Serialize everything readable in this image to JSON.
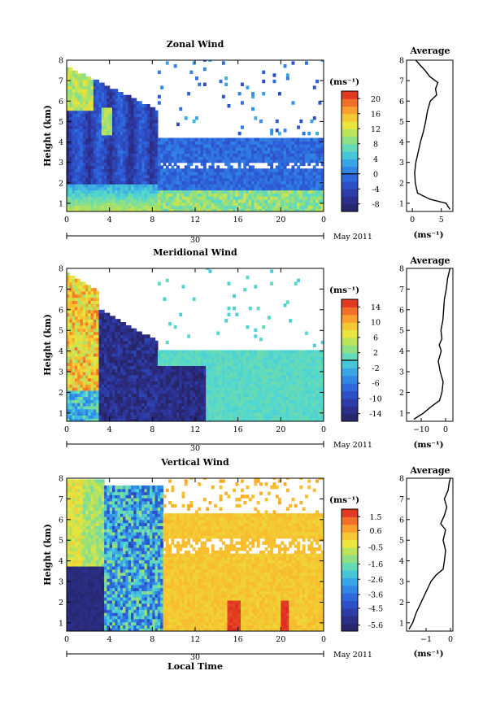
{
  "chart_data": [
    {
      "type": "heatmap",
      "title": "Zonal Wind",
      "ylabel": "Height (km)",
      "xlabel": "",
      "xlim": [
        0,
        24
      ],
      "ylim": [
        0.6,
        8
      ],
      "xticks": [
        "0",
        "4",
        "8",
        "12",
        "16",
        "20",
        "0"
      ],
      "yticks": [
        "1",
        "2",
        "3",
        "4",
        "5",
        "6",
        "7",
        "8"
      ],
      "date_label": "30",
      "month_label": "May 2011",
      "colorbar": {
        "unit": "(ms⁻¹)",
        "min": -10,
        "max": 22,
        "ticks": [
          20,
          16,
          12,
          8,
          4,
          0,
          -4,
          -8
        ],
        "zero_line": 0
      },
      "profile": {
        "title": "Average",
        "xlabel": "(ms⁻¹)",
        "xlim": [
          -1,
          7
        ],
        "xticks": [
          "0",
          "5"
        ],
        "heights": [
          0.7,
          1.0,
          1.2,
          1.5,
          2.0,
          2.5,
          3.0,
          3.5,
          4.0,
          4.5,
          5.0,
          5.5,
          6.0,
          6.3,
          6.6,
          6.9,
          7.2,
          7.5,
          7.8,
          8.0
        ],
        "values": [
          6.5,
          5.8,
          3.0,
          0.9,
          0.5,
          0.4,
          0.6,
          1.0,
          1.4,
          1.9,
          2.3,
          2.6,
          3.1,
          4.2,
          4.0,
          4.4,
          3.0,
          2.2,
          1.2,
          0.6
        ]
      }
    },
    {
      "type": "heatmap",
      "title": "Meridional Wind",
      "ylabel": "Height (km)",
      "xlabel": "",
      "xlim": [
        0,
        24
      ],
      "ylim": [
        0.6,
        8
      ],
      "xticks": [
        "0",
        "4",
        "8",
        "12",
        "16",
        "20",
        "0"
      ],
      "yticks": [
        "1",
        "2",
        "3",
        "4",
        "5",
        "6",
        "7",
        "8"
      ],
      "date_label": "30",
      "month_label": "May 2011",
      "colorbar": {
        "unit": "(ms⁻¹)",
        "min": -16,
        "max": 16,
        "ticks": [
          14,
          10,
          6,
          2,
          -2,
          -6,
          -10,
          -14
        ],
        "zero_line": 0
      },
      "profile": {
        "title": "Average",
        "xlabel": "(ms⁻¹)",
        "xlim": [
          -16,
          3
        ],
        "xticks": [
          "−10",
          "0"
        ],
        "heights": [
          0.7,
          1.0,
          1.3,
          1.6,
          2.0,
          2.5,
          3.0,
          3.5,
          4.0,
          4.3,
          4.6,
          5.0,
          5.5,
          6.0,
          6.5,
          7.0,
          7.5,
          8.0
        ],
        "values": [
          -13,
          -9,
          -6,
          -2.5,
          -1.5,
          -1.0,
          -2.2,
          -3.0,
          -1.8,
          -2.6,
          -1.5,
          -1.9,
          -1.1,
          -0.8,
          -0.5,
          0.3,
          0.8,
          1.8
        ]
      }
    },
    {
      "type": "heatmap",
      "title": "Vertical Wind",
      "ylabel": "Height (km)",
      "xlabel": "Local Time",
      "xlim": [
        0,
        24
      ],
      "ylim": [
        0.6,
        8
      ],
      "xticks": [
        "0",
        "4",
        "8",
        "12",
        "16",
        "20",
        "0"
      ],
      "yticks": [
        "1",
        "2",
        "3",
        "4",
        "5",
        "6",
        "7",
        "8"
      ],
      "date_label": "30",
      "month_label": "May 2011",
      "colorbar": {
        "unit": "(ms⁻¹)",
        "min": -6.0,
        "max": 2.0,
        "ticks": [
          1.5,
          0.6,
          -0.5,
          -1.6,
          -2.6,
          -3.6,
          -4.5,
          -5.6
        ]
      },
      "profile": {
        "title": "Average",
        "xlabel": "(ms⁻¹)",
        "xlim": [
          -1.8,
          0.1
        ],
        "xticks": [
          "−1",
          "0"
        ],
        "heights": [
          0.7,
          1.0,
          1.5,
          2.0,
          2.5,
          3.0,
          3.3,
          3.6,
          4.0,
          4.5,
          5.0,
          5.5,
          5.8,
          6.2,
          6.6,
          7.0,
          7.4,
          7.8,
          8.0
        ],
        "values": [
          -1.7,
          -1.55,
          -1.4,
          -1.2,
          -1.0,
          -0.8,
          -0.6,
          -0.3,
          -0.25,
          -0.2,
          -0.3,
          -0.2,
          -0.4,
          -0.25,
          -0.15,
          -0.25,
          -0.1,
          -0.05,
          0.0
        ]
      }
    }
  ]
}
